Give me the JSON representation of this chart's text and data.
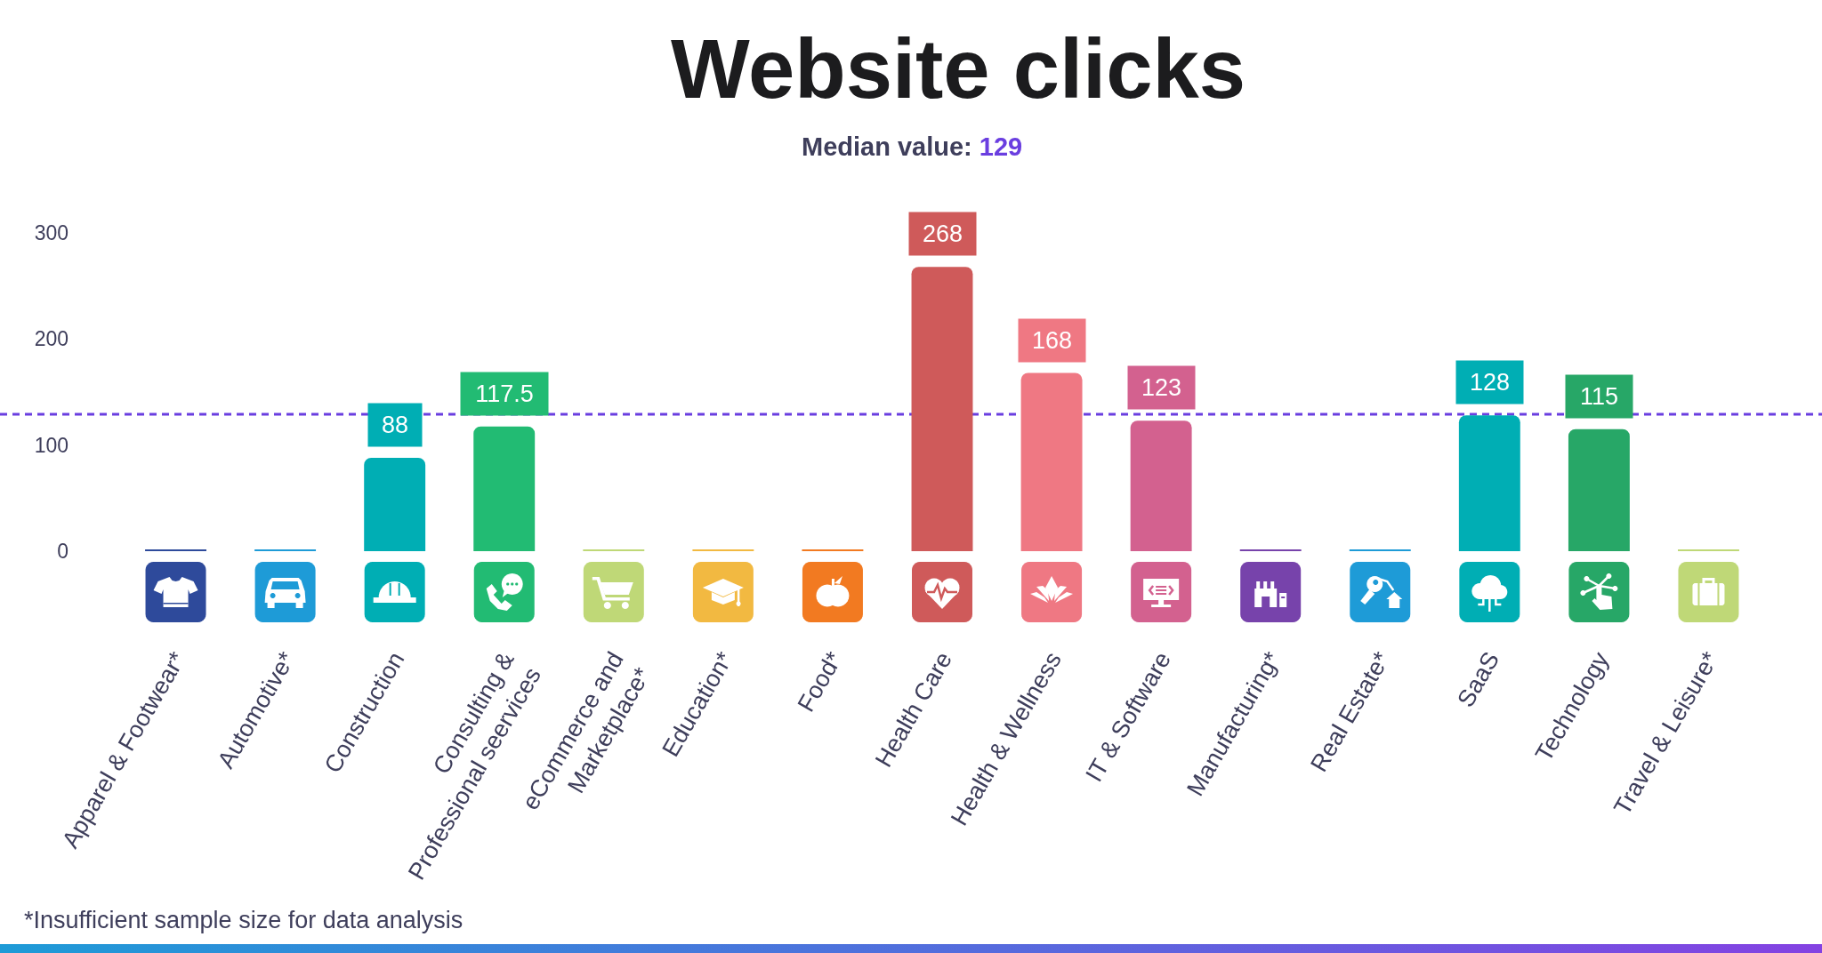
{
  "chart_data": {
    "type": "bar",
    "title": "Website clicks",
    "subtitle": "Median value: 129",
    "categories": [
      "Apparel & Footwear*",
      "Automotive*",
      "Construction",
      "Consulting &\nProfessional seervices",
      "eCommerce and\nMarketplace*",
      "Education*",
      "Food*",
      "Health Care",
      "Health & Wellness",
      "IT & Software",
      "Manufacturing*",
      "Real Estate*",
      "SaaS",
      "Technology",
      "Travel & Leisure*"
    ],
    "values": [
      0,
      0,
      88,
      117.5,
      0,
      0,
      0,
      268,
      168,
      123,
      0,
      0,
      128,
      115,
      0
    ],
    "colors": [
      "#2e4a9b",
      "#1e9bd7",
      "#00aeb4",
      "#22bb73",
      "#bfd877",
      "#f2b941",
      "#f27a21",
      "#cf5a5a",
      "#ef7883",
      "#d3618f",
      "#7743ab",
      "#1e9bd7",
      "#00aeb4",
      "#27a767",
      "#bfd877"
    ],
    "value_labels": [
      null,
      null,
      "88",
      "117.5",
      null,
      null,
      null,
      "268",
      "168",
      "123",
      null,
      null,
      "128",
      "115",
      null
    ],
    "ylim": [
      0,
      300
    ],
    "yticks": [
      0,
      100,
      200,
      300
    ],
    "ref_lines": [
      {
        "axis": "y",
        "value": 129,
        "color": "#6a3ee0",
        "line_style": "dashed"
      }
    ],
    "annotations": [
      "*Insufficient sample size for data analysis"
    ]
  }
}
